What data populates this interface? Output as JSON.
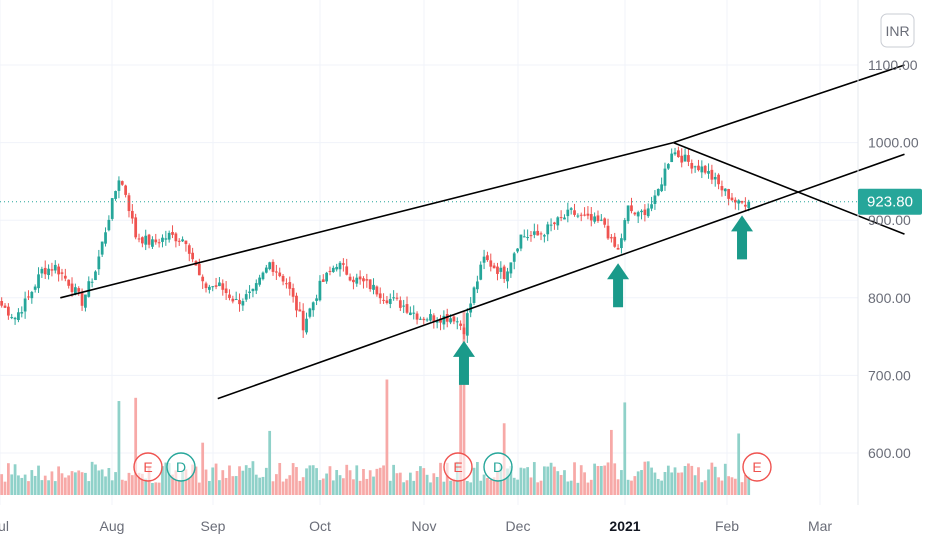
{
  "currency_button": "INR",
  "last_price_label": "923.80",
  "colors": {
    "up": "#26a69a",
    "down": "#ef5350",
    "vol_up": "#8fd1c9",
    "vol_down": "#f7a9a7",
    "arrow": "#1a9a8a",
    "price_label_bg": "#26a69a",
    "grid": "#f0f3fa",
    "axis_text": "#6a6d78"
  },
  "event_markers": [
    {
      "letter": "E",
      "kind": "earnings",
      "month_pos": "Aug late"
    },
    {
      "letter": "D",
      "kind": "dividend",
      "month_pos": "Aug late"
    },
    {
      "letter": "E",
      "kind": "earnings",
      "month_pos": "Nov mid"
    },
    {
      "letter": "D",
      "kind": "dividend",
      "month_pos": "Nov late"
    },
    {
      "letter": "E",
      "kind": "earnings",
      "month_pos": "Feb mid"
    }
  ],
  "chart_data": {
    "type": "candlestick",
    "x_tick_labels": [
      "Jul",
      "Aug",
      "Sep",
      "Oct",
      "Nov",
      "Dec",
      "2021",
      "Feb",
      "Mar"
    ],
    "x_tick_bold": [
      "2021"
    ],
    "y_tick_labels": [
      "1100.00",
      "1000.00",
      "900.00",
      "800.00",
      "700.00",
      "600.00"
    ],
    "y_ticks": [
      1100,
      1000,
      900,
      800,
      700,
      600
    ],
    "ylim": [
      545,
      1170
    ],
    "last_price": 923.8,
    "price_anchors": [
      [
        0,
        790
      ],
      [
        4,
        775
      ],
      [
        8,
        800
      ],
      [
        12,
        835
      ],
      [
        16,
        840
      ],
      [
        20,
        820
      ],
      [
        24,
        795
      ],
      [
        28,
        835
      ],
      [
        32,
        905
      ],
      [
        35,
        955
      ],
      [
        37,
        935
      ],
      [
        40,
        880
      ],
      [
        45,
        870
      ],
      [
        50,
        880
      ],
      [
        55,
        875
      ],
      [
        60,
        815
      ],
      [
        65,
        815
      ],
      [
        70,
        795
      ],
      [
        75,
        805
      ],
      [
        80,
        845
      ],
      [
        85,
        820
      ],
      [
        90,
        765
      ],
      [
        95,
        815
      ],
      [
        100,
        845
      ],
      [
        105,
        825
      ],
      [
        110,
        815
      ],
      [
        115,
        800
      ],
      [
        120,
        790
      ],
      [
        125,
        775
      ],
      [
        130,
        775
      ],
      [
        135,
        775
      ],
      [
        138,
        760
      ],
      [
        141,
        810
      ],
      [
        144,
        850
      ],
      [
        150,
        830
      ],
      [
        155,
        880
      ],
      [
        160,
        880
      ],
      [
        165,
        895
      ],
      [
        170,
        910
      ],
      [
        175,
        900
      ],
      [
        180,
        895
      ],
      [
        182,
        870
      ],
      [
        184,
        860
      ],
      [
        187,
        915
      ],
      [
        190,
        905
      ],
      [
        195,
        925
      ],
      [
        200,
        990
      ],
      [
        205,
        975
      ],
      [
        210,
        965
      ],
      [
        215,
        940
      ],
      [
        220,
        920
      ],
      [
        223,
        925
      ]
    ],
    "arrow_markers_at": [
      138,
      184,
      221
    ],
    "trend_lines": [
      {
        "from": [
          18,
          800
        ],
        "to": [
          201,
          1000
        ]
      },
      {
        "from": [
          201,
          1000
        ],
        "to": [
          270,
          882
        ]
      },
      {
        "from": [
          65,
          670
        ],
        "to": [
          270,
          985
        ]
      },
      {
        "from": [
          201,
          1000
        ],
        "to": [
          270,
          1100
        ]
      }
    ]
  }
}
